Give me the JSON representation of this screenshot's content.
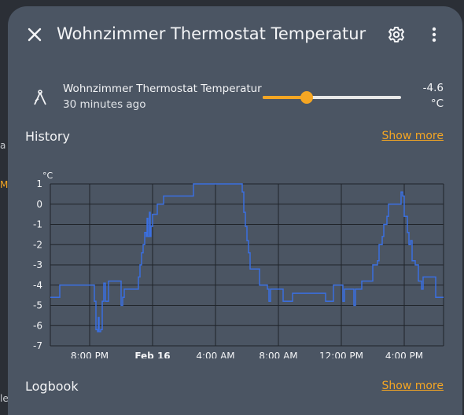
{
  "header": {
    "title": "Wohnzimmer Thermostat Temperatur"
  },
  "entity": {
    "name": "Wohnzimmer Thermostat Temperatur",
    "last_changed": "30 minutes ago",
    "value": "-4.6",
    "unit": "°C",
    "slider_fraction": 0.32,
    "icon": "thermometer-icon"
  },
  "history": {
    "title": "History",
    "show_more": "Show more"
  },
  "logbook": {
    "title": "Logbook",
    "show_more": "Show more"
  },
  "background": {
    "left_fragments": [
      "a",
      "Mo",
      "le"
    ]
  },
  "colors": {
    "accent": "#f5a623",
    "line": "#3b6fe0",
    "dialog": "#4b5563"
  },
  "chart_data": {
    "type": "line",
    "ylabel": "°C",
    "ylim": [
      -7,
      1
    ],
    "yticks": [
      1,
      0,
      -1,
      -2,
      -3,
      -4,
      -5,
      -6,
      -7
    ],
    "xlim": [
      17.5,
      42.5
    ],
    "xticks": [
      {
        "x": 20,
        "label": "8:00 PM",
        "bold": false
      },
      {
        "x": 24,
        "label": "Feb 16",
        "bold": true
      },
      {
        "x": 28,
        "label": "4:00 AM",
        "bold": false
      },
      {
        "x": 32,
        "label": "8:00 AM",
        "bold": false
      },
      {
        "x": 36,
        "label": "12:00 PM",
        "bold": false
      },
      {
        "x": 40,
        "label": "4:00 PM",
        "bold": false
      }
    ],
    "grid": true,
    "series": [
      {
        "color": "#3b6fe0",
        "points": [
          [
            17.5,
            -4.6
          ],
          [
            18.0,
            -4.6
          ],
          [
            18.1,
            -4.0
          ],
          [
            19.5,
            -4.0
          ],
          [
            20.2,
            -4.0
          ],
          [
            20.3,
            -4.8
          ],
          [
            20.4,
            -6.2
          ],
          [
            20.5,
            -6.3
          ],
          [
            20.55,
            -5.6
          ],
          [
            20.6,
            -6.3
          ],
          [
            20.7,
            -6.2
          ],
          [
            20.8,
            -4.8
          ],
          [
            20.9,
            -3.9
          ],
          [
            21.0,
            -4.8
          ],
          [
            21.1,
            -4.8
          ],
          [
            21.2,
            -3.8
          ],
          [
            21.9,
            -3.8
          ],
          [
            22.0,
            -5.0
          ],
          [
            22.1,
            -4.6
          ],
          [
            22.2,
            -4.2
          ],
          [
            23.0,
            -4.2
          ],
          [
            23.1,
            -3.6
          ],
          [
            23.2,
            -3.0
          ],
          [
            23.3,
            -2.4
          ],
          [
            23.4,
            -2.0
          ],
          [
            23.5,
            -1.4
          ],
          [
            23.6,
            -1.6
          ],
          [
            23.65,
            -0.7
          ],
          [
            23.7,
            -1.6
          ],
          [
            23.8,
            -0.4
          ],
          [
            23.85,
            -1.6
          ],
          [
            23.9,
            -1.1
          ],
          [
            24.0,
            -0.5
          ],
          [
            24.2,
            -0.5
          ],
          [
            24.3,
            0.0
          ],
          [
            24.6,
            0.0
          ],
          [
            24.7,
            0.4
          ],
          [
            26.5,
            0.4
          ],
          [
            26.6,
            1.0
          ],
          [
            29.6,
            1.0
          ],
          [
            29.7,
            0.6
          ],
          [
            29.8,
            -0.4
          ],
          [
            29.9,
            -1.1
          ],
          [
            30.0,
            -1.8
          ],
          [
            30.1,
            -2.4
          ],
          [
            30.2,
            -3.2
          ],
          [
            30.7,
            -3.2
          ],
          [
            30.8,
            -4.0
          ],
          [
            31.3,
            -4.2
          ],
          [
            31.4,
            -4.8
          ],
          [
            31.5,
            -4.2
          ],
          [
            32.2,
            -4.2
          ],
          [
            32.3,
            -4.8
          ],
          [
            32.8,
            -4.8
          ],
          [
            32.9,
            -4.4
          ],
          [
            34.9,
            -4.4
          ],
          [
            35.0,
            -4.8
          ],
          [
            35.4,
            -4.8
          ],
          [
            35.5,
            -4.0
          ],
          [
            36.0,
            -4.0
          ],
          [
            36.1,
            -4.8
          ],
          [
            36.2,
            -4.2
          ],
          [
            36.7,
            -4.2
          ],
          [
            36.8,
            -5.0
          ],
          [
            36.9,
            -4.2
          ],
          [
            37.2,
            -4.2
          ],
          [
            37.3,
            -3.8
          ],
          [
            37.9,
            -3.8
          ],
          [
            38.0,
            -3.0
          ],
          [
            38.3,
            -2.8
          ],
          [
            38.4,
            -2.0
          ],
          [
            38.6,
            -1.6
          ],
          [
            38.7,
            -1.0
          ],
          [
            38.9,
            -0.6
          ],
          [
            39.0,
            0.0
          ],
          [
            39.7,
            0.0
          ],
          [
            39.8,
            0.6
          ],
          [
            39.9,
            0.4
          ],
          [
            40.0,
            -0.6
          ],
          [
            40.2,
            -1.4
          ],
          [
            40.3,
            -2.0
          ],
          [
            40.4,
            -1.8
          ],
          [
            40.5,
            -2.8
          ],
          [
            40.7,
            -3.0
          ],
          [
            40.9,
            -3.8
          ],
          [
            41.1,
            -4.2
          ],
          [
            41.2,
            -3.6
          ],
          [
            41.9,
            -3.6
          ],
          [
            42.0,
            -4.6
          ],
          [
            42.5,
            -4.6
          ]
        ]
      }
    ]
  }
}
